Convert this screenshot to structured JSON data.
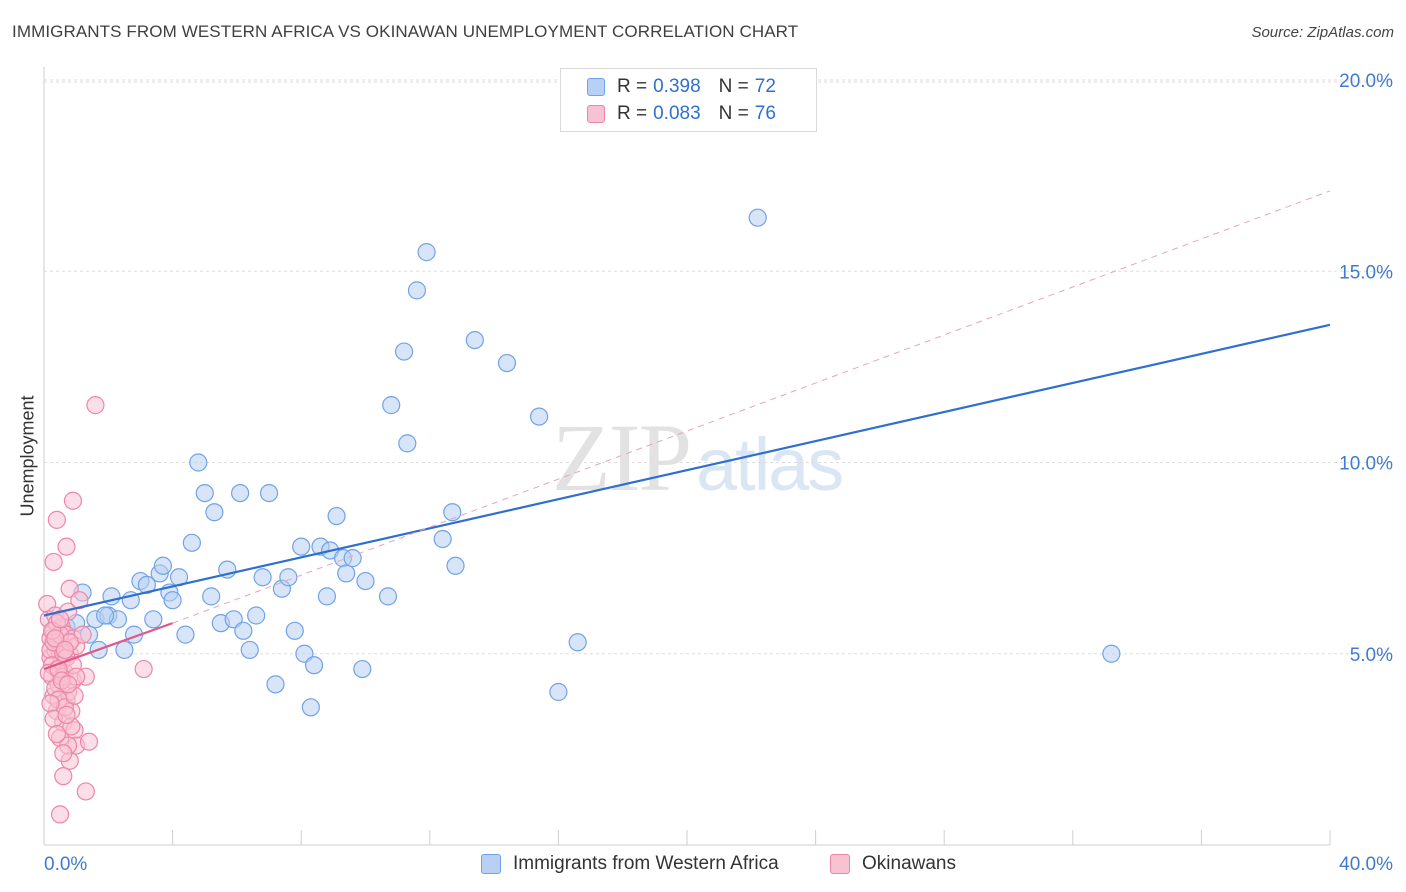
{
  "title": "IMMIGRANTS FROM WESTERN AFRICA VS OKINAWAN UNEMPLOYMENT CORRELATION CHART",
  "source": "Source: ZipAtlas.com",
  "watermark": {
    "zip": "ZIP",
    "atlas": "atlas"
  },
  "legend": {
    "r_label": "R =",
    "n_label": "N =",
    "series": [
      {
        "name": "Immigrants from Western Africa",
        "r": "0.398",
        "n": "72",
        "color": "#6fa3e6",
        "fill": "#b8d0f3"
      },
      {
        "name": "Okinawans",
        "r": "0.083",
        "n": "76",
        "color": "#ee86a7",
        "fill": "#f7c3d3"
      }
    ]
  },
  "chart_data": {
    "type": "scatter",
    "title": "IMMIGRANTS FROM WESTERN AFRICA VS OKINAWAN UNEMPLOYMENT CORRELATION CHART",
    "xlabel": "",
    "ylabel": "Unemployment",
    "xlim": [
      0,
      40
    ],
    "ylim": [
      0,
      20
    ],
    "x_tick_labels": [
      "0.0%",
      "40.0%"
    ],
    "y_ticks": [
      5,
      10,
      15,
      20
    ],
    "y_tick_labels": [
      "5.0%",
      "10.0%",
      "15.0%",
      "20.0%"
    ],
    "grid": "horizontal dashed",
    "series": [
      {
        "name": "Immigrants from Western Africa",
        "color": "#6fa3e6",
        "trend": {
          "x": [
            0,
            40
          ],
          "y": [
            6.0,
            13.6
          ]
        },
        "points": [
          [
            0.4,
            5.3
          ],
          [
            0.6,
            5.1
          ],
          [
            0.7,
            5.7
          ],
          [
            1.0,
            5.8
          ],
          [
            1.2,
            6.6
          ],
          [
            1.4,
            5.5
          ],
          [
            1.6,
            5.9
          ],
          [
            1.7,
            5.1
          ],
          [
            2.0,
            6.0
          ],
          [
            2.1,
            6.5
          ],
          [
            2.3,
            5.9
          ],
          [
            2.5,
            5.1
          ],
          [
            2.7,
            6.4
          ],
          [
            2.8,
            5.5
          ],
          [
            3.0,
            6.9
          ],
          [
            3.2,
            6.8
          ],
          [
            3.4,
            5.9
          ],
          [
            3.6,
            7.1
          ],
          [
            3.7,
            7.3
          ],
          [
            3.9,
            6.6
          ],
          [
            4.0,
            6.4
          ],
          [
            4.2,
            7.0
          ],
          [
            4.4,
            5.5
          ],
          [
            4.6,
            7.9
          ],
          [
            4.8,
            10.0
          ],
          [
            5.0,
            9.2
          ],
          [
            5.2,
            6.5
          ],
          [
            5.3,
            8.7
          ],
          [
            5.5,
            5.8
          ],
          [
            5.7,
            7.2
          ],
          [
            5.9,
            5.9
          ],
          [
            6.1,
            9.2
          ],
          [
            6.2,
            5.6
          ],
          [
            6.4,
            5.1
          ],
          [
            6.6,
            6.0
          ],
          [
            6.8,
            7.0
          ],
          [
            7.0,
            9.2
          ],
          [
            7.2,
            4.2
          ],
          [
            7.4,
            6.7
          ],
          [
            7.6,
            7.0
          ],
          [
            7.8,
            5.6
          ],
          [
            8.0,
            7.8
          ],
          [
            8.1,
            5.0
          ],
          [
            8.3,
            3.6
          ],
          [
            8.4,
            4.7
          ],
          [
            8.6,
            7.8
          ],
          [
            8.8,
            6.5
          ],
          [
            8.9,
            7.7
          ],
          [
            9.1,
            8.6
          ],
          [
            9.3,
            7.5
          ],
          [
            9.4,
            7.1
          ],
          [
            9.6,
            7.5
          ],
          [
            9.9,
            4.6
          ],
          [
            10.0,
            6.9
          ],
          [
            10.7,
            6.5
          ],
          [
            10.8,
            11.5
          ],
          [
            11.2,
            12.9
          ],
          [
            11.3,
            10.5
          ],
          [
            11.6,
            14.5
          ],
          [
            11.9,
            15.5
          ],
          [
            12.4,
            8.0
          ],
          [
            12.7,
            8.7
          ],
          [
            12.8,
            7.3
          ],
          [
            13.4,
            13.2
          ],
          [
            14.4,
            12.6
          ],
          [
            15.4,
            11.2
          ],
          [
            16.0,
            4.0
          ],
          [
            16.6,
            5.3
          ],
          [
            22.2,
            16.4
          ],
          [
            33.2,
            5.0
          ],
          [
            0.5,
            5.2
          ],
          [
            1.9,
            6.0
          ]
        ]
      },
      {
        "name": "Okinawans",
        "color": "#ee86a7",
        "trend": {
          "x": [
            0,
            4.0
          ],
          "y": [
            4.6,
            5.8
          ],
          "dashed_extension": {
            "x": [
              4.0,
              40
            ],
            "y": [
              5.8,
              17.1
            ]
          }
        },
        "points": [
          [
            0.1,
            6.3
          ],
          [
            0.15,
            5.9
          ],
          [
            0.2,
            5.4
          ],
          [
            0.2,
            4.9
          ],
          [
            0.25,
            4.4
          ],
          [
            0.3,
            3.9
          ],
          [
            0.3,
            5.6
          ],
          [
            0.35,
            6.0
          ],
          [
            0.35,
            5.1
          ],
          [
            0.4,
            4.6
          ],
          [
            0.4,
            3.5
          ],
          [
            0.45,
            5.3
          ],
          [
            0.45,
            4.2
          ],
          [
            0.5,
            5.0
          ],
          [
            0.5,
            2.8
          ],
          [
            0.55,
            5.7
          ],
          [
            0.55,
            4.8
          ],
          [
            0.6,
            3.2
          ],
          [
            0.6,
            5.2
          ],
          [
            0.65,
            4.5
          ],
          [
            0.7,
            5.5
          ],
          [
            0.7,
            3.8
          ],
          [
            0.75,
            6.1
          ],
          [
            0.75,
            4.0
          ],
          [
            0.8,
            5.0
          ],
          [
            0.8,
            2.2
          ],
          [
            0.85,
            3.5
          ],
          [
            0.9,
            5.4
          ],
          [
            0.9,
            4.3
          ],
          [
            0.95,
            3.0
          ],
          [
            1.0,
            5.2
          ],
          [
            1.0,
            2.6
          ],
          [
            0.3,
            7.4
          ],
          [
            0.4,
            8.5
          ],
          [
            0.6,
            1.8
          ],
          [
            0.5,
            0.8
          ],
          [
            0.7,
            7.8
          ],
          [
            0.8,
            6.7
          ],
          [
            0.9,
            9.0
          ],
          [
            1.1,
            6.4
          ],
          [
            1.2,
            5.5
          ],
          [
            1.3,
            4.4
          ],
          [
            1.4,
            2.7
          ],
          [
            1.6,
            11.5
          ],
          [
            3.1,
            4.6
          ],
          [
            1.3,
            1.4
          ],
          [
            0.2,
            5.1
          ],
          [
            0.25,
            4.7
          ],
          [
            0.3,
            5.3
          ],
          [
            0.35,
            4.1
          ],
          [
            0.4,
            5.8
          ],
          [
            0.45,
            3.8
          ],
          [
            0.5,
            5.5
          ],
          [
            0.55,
            4.4
          ],
          [
            0.6,
            5.0
          ],
          [
            0.65,
            3.6
          ],
          [
            0.7,
            4.9
          ],
          [
            0.75,
            2.6
          ],
          [
            0.8,
            5.3
          ],
          [
            0.85,
            3.1
          ],
          [
            0.9,
            4.7
          ],
          [
            0.95,
            3.9
          ],
          [
            1.0,
            4.4
          ],
          [
            0.15,
            4.5
          ],
          [
            0.2,
            3.7
          ],
          [
            0.25,
            5.6
          ],
          [
            0.3,
            3.3
          ],
          [
            0.35,
            5.4
          ],
          [
            0.4,
            2.9
          ],
          [
            0.45,
            4.6
          ],
          [
            0.5,
            5.9
          ],
          [
            0.55,
            4.3
          ],
          [
            0.6,
            2.4
          ],
          [
            0.65,
            5.1
          ],
          [
            0.7,
            3.4
          ],
          [
            0.75,
            4.2
          ]
        ]
      }
    ]
  }
}
